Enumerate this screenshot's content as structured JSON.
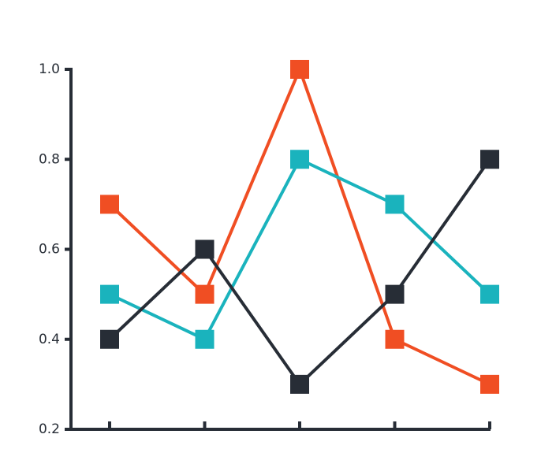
{
  "chart_data": {
    "type": "line",
    "categories": [
      null,
      null,
      null,
      null,
      null
    ],
    "series": [
      {
        "color": "#f04e23",
        "values": [
          0.7,
          0.5,
          1.0,
          0.4,
          0.3
        ]
      },
      {
        "color": "#1ab3bd",
        "values": [
          0.5,
          0.4,
          0.8,
          0.7,
          0.5
        ]
      },
      {
        "color": "#272d36",
        "values": [
          0.4,
          0.6,
          0.3,
          0.5,
          0.8
        ]
      }
    ],
    "ylim": [
      0.2,
      1.0
    ],
    "yticks": [
      0.2,
      0.4,
      0.6,
      0.8,
      {
        "value": 1.0,
        "label": "1.0"
      }
    ],
    "axis_color": "#272d36"
  }
}
